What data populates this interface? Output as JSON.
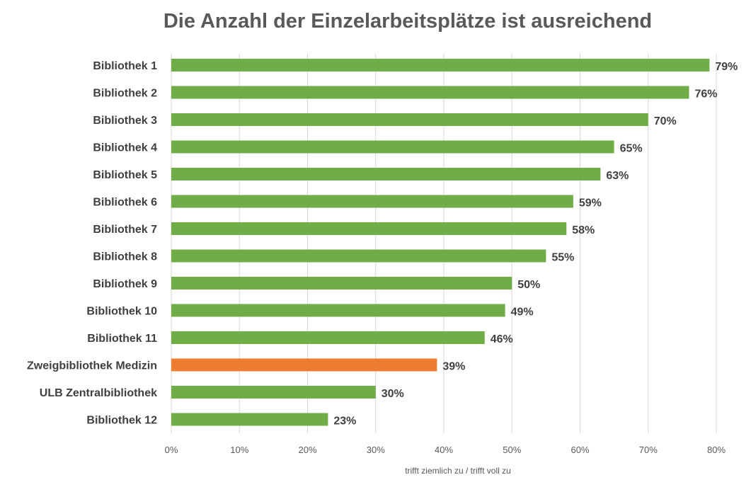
{
  "chart_data": {
    "type": "bar",
    "orientation": "horizontal",
    "title": "Die Anzahl der Einzelarbeitsplätze ist ausreichend",
    "xlabel": "trifft ziemlich zu / trifft voll zu",
    "ylabel": "",
    "xlim": [
      0,
      80
    ],
    "x_ticks": [
      "0%",
      "10%",
      "20%",
      "30%",
      "40%",
      "50%",
      "60%",
      "70%",
      "80%"
    ],
    "grid": true,
    "colors": {
      "default": "#70AD47",
      "highlight": "#ED7D31"
    },
    "categories": [
      "Bibliothek 1",
      "Bibliothek 2",
      "Bibliothek 3",
      "Bibliothek 4",
      "Bibliothek 5",
      "Bibliothek 6",
      "Bibliothek 7",
      "Bibliothek 8",
      "Bibliothek 9",
      "Bibliothek 10",
      "Bibliothek 11",
      "Zweigbibliothek Medizin",
      "ULB Zentralbibliothek",
      "Bibliothek 12"
    ],
    "values": [
      79,
      76,
      70,
      65,
      63,
      59,
      58,
      55,
      50,
      49,
      46,
      39,
      30,
      23
    ],
    "value_labels": [
      "79%",
      "76%",
      "70%",
      "65%",
      "63%",
      "59%",
      "58%",
      "55%",
      "50%",
      "49%",
      "46%",
      "39%",
      "30%",
      "23%"
    ],
    "highlighted": [
      "Zweigbibliothek Medizin"
    ]
  }
}
